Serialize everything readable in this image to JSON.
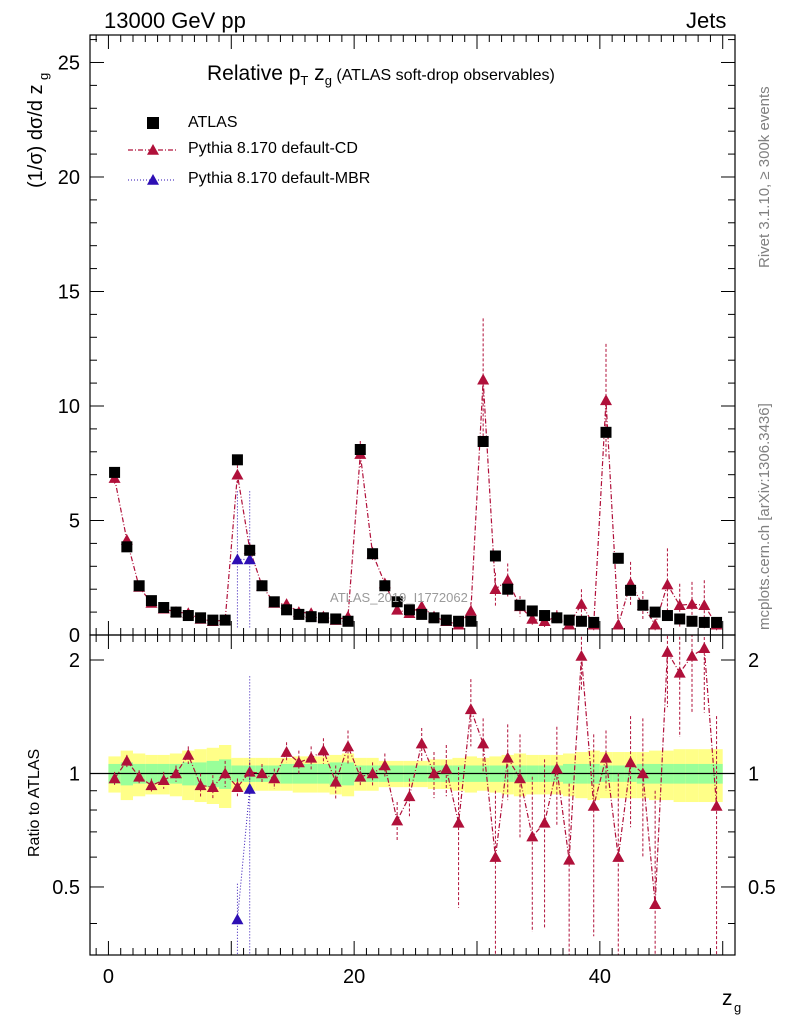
{
  "header": {
    "left": "13000 GeV pp",
    "right": "Jets"
  },
  "side_text": {
    "top": "Rivet 3.1.10, ≥ 300k events",
    "bottom": "mcplots.cern.ch [arXiv:1306.3436]"
  },
  "watermark": "ATLAS_2019_I1772062",
  "legend": {
    "title_main": "Relative p",
    "title_sub_t": "T",
    "title_zg": " z",
    "title_sub_g": "g",
    "title_paren": " (ATLAS soft-drop observables)",
    "items": [
      "ATLAS",
      "Pythia 8.170 default-CD",
      "Pythia 8.170 default-MBR"
    ]
  },
  "colors": {
    "data": "#000000",
    "cd": "#b0103a",
    "mbr": "#2e0fb4",
    "band_inner": "#99ff99",
    "band_outer": "#ffff88"
  },
  "chart_data": {
    "type": "scatter",
    "xlabel": "z_g",
    "top_ylabel": "(1/σ) dσ/d z_g",
    "bottom_ylabel": "Ratio to ATLAS",
    "xlim": [
      -1.5,
      51
    ],
    "top_ylim": [
      0,
      26.2
    ],
    "bottom_ylim": [
      0.33,
      2.33
    ],
    "top_yticks": [
      0,
      5,
      10,
      15,
      20,
      25
    ],
    "bottom_yticks": [
      0.5,
      1,
      2
    ],
    "xticks": [
      0,
      20,
      40
    ],
    "x": [
      0.5,
      1.5,
      2.5,
      3.5,
      4.5,
      5.5,
      6.5,
      7.5,
      8.5,
      9.5,
      10.5,
      11.5,
      12.5,
      13.5,
      14.5,
      15.5,
      16.5,
      17.5,
      18.5,
      19.5,
      20.5,
      21.5,
      22.5,
      23.5,
      24.5,
      25.5,
      26.5,
      27.5,
      28.5,
      29.5,
      30.5,
      31.5,
      32.5,
      33.5,
      34.5,
      35.5,
      36.5,
      37.5,
      38.5,
      39.5,
      40.5,
      41.5,
      42.5,
      43.5,
      44.5,
      45.5,
      46.5,
      47.5,
      48.5,
      49.5
    ],
    "series": [
      {
        "name": "ATLAS",
        "values": [
          7.1,
          3.85,
          2.15,
          1.5,
          1.2,
          1.0,
          0.85,
          0.75,
          0.65,
          0.65,
          7.65,
          3.7,
          2.15,
          1.45,
          1.1,
          0.9,
          0.8,
          0.75,
          0.7,
          0.6,
          8.1,
          3.55,
          2.15,
          1.45,
          1.1,
          0.9,
          0.75,
          0.65,
          0.6,
          0.6,
          8.45,
          3.45,
          2.0,
          1.3,
          1.05,
          0.85,
          0.75,
          0.65,
          0.6,
          0.55,
          8.85,
          3.35,
          1.95,
          1.3,
          1.0,
          0.85,
          0.7,
          0.6,
          0.55,
          0.55
        ],
        "band_inner": [
          0.06,
          0.07,
          0.06,
          0.06,
          0.06,
          0.06,
          0.07,
          0.07,
          0.08,
          0.09,
          0.05,
          0.05,
          0.05,
          0.05,
          0.06,
          0.06,
          0.06,
          0.06,
          0.07,
          0.07,
          0.05,
          0.05,
          0.05,
          0.05,
          0.05,
          0.05,
          0.05,
          0.05,
          0.05,
          0.05,
          0.05,
          0.05,
          0.05,
          0.05,
          0.05,
          0.05,
          0.05,
          0.06,
          0.06,
          0.06,
          0.05,
          0.05,
          0.05,
          0.06,
          0.06,
          0.06,
          0.06,
          0.06,
          0.06,
          0.06
        ],
        "band_outer": [
          0.11,
          0.15,
          0.13,
          0.12,
          0.12,
          0.13,
          0.15,
          0.16,
          0.17,
          0.19,
          0.1,
          0.1,
          0.1,
          0.1,
          0.1,
          0.11,
          0.11,
          0.11,
          0.12,
          0.13,
          0.1,
          0.1,
          0.08,
          0.08,
          0.08,
          0.08,
          0.09,
          0.09,
          0.1,
          0.11,
          0.1,
          0.11,
          0.12,
          0.13,
          0.12,
          0.12,
          0.12,
          0.13,
          0.14,
          0.15,
          0.14,
          0.14,
          0.14,
          0.14,
          0.15,
          0.15,
          0.16,
          0.16,
          0.16,
          0.16
        ]
      },
      {
        "name": "Pythia 8.170 default-CD",
        "values": [
          6.85,
          4.15,
          2.1,
          1.4,
          1.15,
          1.0,
          0.95,
          0.7,
          0.6,
          0.65,
          7.0,
          3.75,
          2.15,
          1.4,
          1.35,
          1.0,
          0.95,
          0.8,
          0.65,
          0.8,
          7.9,
          3.55,
          2.25,
          1.1,
          0.95,
          1.25,
          0.8,
          0.6,
          0.45,
          1.05,
          11.15,
          2.0,
          2.4,
          1.25,
          0.7,
          0.6,
          0.8,
          0.45,
          1.35,
          0.45,
          10.25,
          0.45,
          2.25,
          1.3,
          0.45,
          2.2,
          1.3,
          1.35,
          1.3,
          0.45
        ],
        "ratio": [
          0.97,
          1.08,
          0.98,
          0.93,
          0.96,
          1.0,
          1.12,
          0.93,
          0.92,
          1.0,
          0.92,
          1.01,
          1.0,
          0.97,
          1.14,
          1.07,
          1.1,
          1.15,
          0.95,
          1.18,
          0.98,
          1.0,
          1.05,
          0.75,
          0.87,
          1.2,
          1.0,
          1.03,
          0.74,
          1.48,
          1.2,
          0.6,
          1.1,
          0.97,
          0.68,
          0.74,
          1.03,
          0.59,
          2.05,
          0.82,
          1.1,
          0.6,
          1.07,
          1.0,
          0.45,
          2.1,
          1.85,
          2.05,
          2.15,
          0.82
        ],
        "ratio_err": [
          0.04,
          0.04,
          0.04,
          0.04,
          0.05,
          0.05,
          0.06,
          0.07,
          0.07,
          0.08,
          0.05,
          0.06,
          0.06,
          0.06,
          0.07,
          0.08,
          0.08,
          0.09,
          0.1,
          0.12,
          0.06,
          0.07,
          0.08,
          0.09,
          0.1,
          0.12,
          0.14,
          0.16,
          0.3,
          0.3,
          0.2,
          0.3,
          0.25,
          0.3,
          0.3,
          0.35,
          0.3,
          0.35,
          0.4,
          0.45,
          0.2,
          0.4,
          0.35,
          0.4,
          0.45,
          0.6,
          0.6,
          0.6,
          0.7,
          0.6
        ]
      },
      {
        "name": "Pythia 8.170 default-MBR",
        "values": [
          3.3,
          3.3
        ],
        "x_override": [
          10.5,
          11.5
        ],
        "ratio": [
          0.41,
          0.91
        ],
        "ratio_err": [
          0.1,
          0.9
        ]
      }
    ]
  }
}
